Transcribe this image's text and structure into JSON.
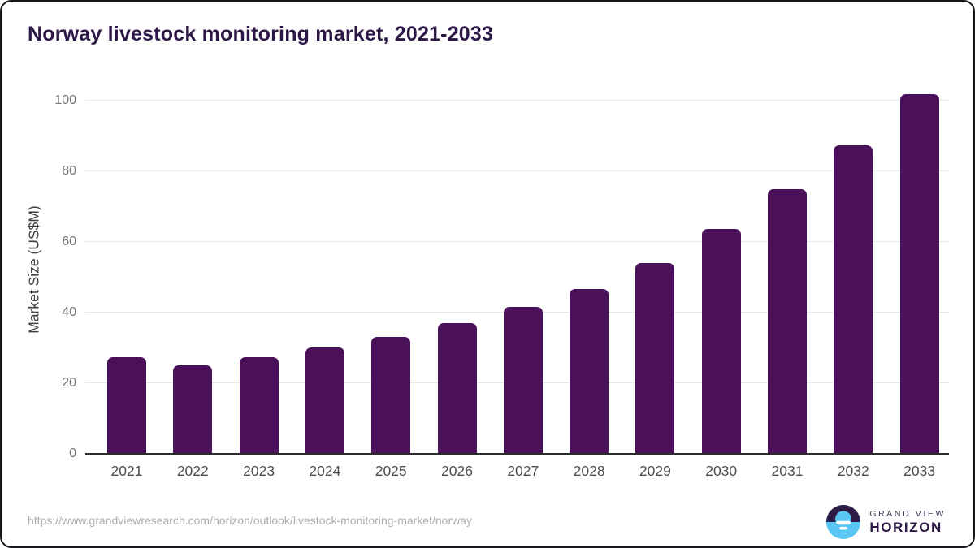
{
  "title": "Norway livestock monitoring market, 2021-2033",
  "footer": {
    "source_url": "https://www.grandviewresearch.com/horizon/outlook/livestock-monitoring-market/norway"
  },
  "logo": {
    "line1": "GRAND VIEW",
    "line2": "HORIZON",
    "mark": "sunrise-horizon-icon"
  },
  "colors": {
    "bar": "#4a105a",
    "title_text": "#2d1746",
    "gridline": "#e8e8e8",
    "axis_line": "#2b2b2b",
    "y_tick_text": "#757575",
    "x_tick_text": "#4d4d4d",
    "url_text": "#adadad",
    "logo_purple": "#2e1a47",
    "logo_blue": "#59c6f3"
  },
  "chart_data": {
    "type": "bar",
    "title": "Norway livestock monitoring market, 2021-2033",
    "categories": [
      "2021",
      "2022",
      "2023",
      "2024",
      "2025",
      "2026",
      "2027",
      "2028",
      "2029",
      "2030",
      "2031",
      "2032",
      "2033"
    ],
    "values": [
      27.4,
      25.1,
      27.4,
      30.0,
      33.0,
      36.9,
      41.5,
      46.6,
      54.0,
      63.7,
      74.8,
      87.3,
      101.9
    ],
    "xlabel": "",
    "ylabel": "Market Size (US$M)",
    "ylim": [
      0,
      105
    ],
    "yticks": [
      0,
      20,
      40,
      60,
      80,
      100
    ],
    "grid": true,
    "legend": false,
    "bar_color": "#4a105a"
  }
}
